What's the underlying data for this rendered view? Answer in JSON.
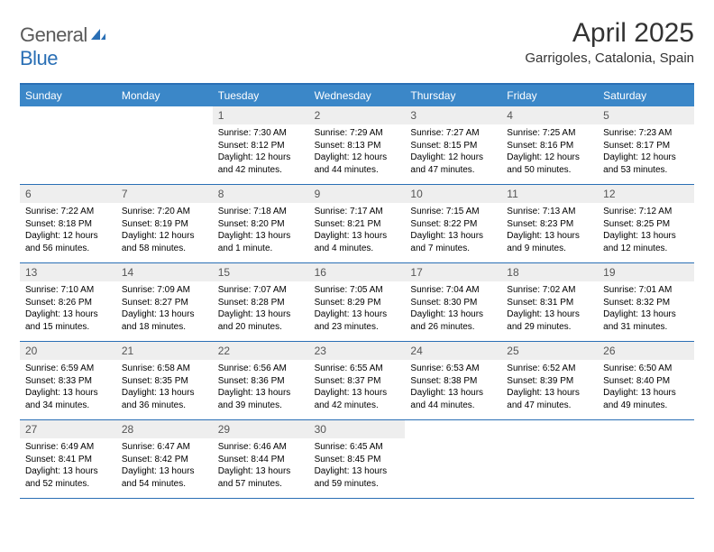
{
  "logo": {
    "general": "General",
    "blue": "Blue"
  },
  "title": "April 2025",
  "location": "Garrigoles, Catalonia, Spain",
  "colors": {
    "header_bg": "#3b87c8",
    "border": "#2a6fb5",
    "daynum_bg": "#eeeeee",
    "text": "#000000",
    "logo_gray": "#5a5a5a",
    "logo_blue": "#2a6fb5"
  },
  "weekdays": [
    "Sunday",
    "Monday",
    "Tuesday",
    "Wednesday",
    "Thursday",
    "Friday",
    "Saturday"
  ],
  "weeks": [
    [
      null,
      null,
      {
        "n": "1",
        "sr": "7:30 AM",
        "ss": "8:12 PM",
        "dl": "12 hours and 42 minutes."
      },
      {
        "n": "2",
        "sr": "7:29 AM",
        "ss": "8:13 PM",
        "dl": "12 hours and 44 minutes."
      },
      {
        "n": "3",
        "sr": "7:27 AM",
        "ss": "8:15 PM",
        "dl": "12 hours and 47 minutes."
      },
      {
        "n": "4",
        "sr": "7:25 AM",
        "ss": "8:16 PM",
        "dl": "12 hours and 50 minutes."
      },
      {
        "n": "5",
        "sr": "7:23 AM",
        "ss": "8:17 PM",
        "dl": "12 hours and 53 minutes."
      }
    ],
    [
      {
        "n": "6",
        "sr": "7:22 AM",
        "ss": "8:18 PM",
        "dl": "12 hours and 56 minutes."
      },
      {
        "n": "7",
        "sr": "7:20 AM",
        "ss": "8:19 PM",
        "dl": "12 hours and 58 minutes."
      },
      {
        "n": "8",
        "sr": "7:18 AM",
        "ss": "8:20 PM",
        "dl": "13 hours and 1 minute."
      },
      {
        "n": "9",
        "sr": "7:17 AM",
        "ss": "8:21 PM",
        "dl": "13 hours and 4 minutes."
      },
      {
        "n": "10",
        "sr": "7:15 AM",
        "ss": "8:22 PM",
        "dl": "13 hours and 7 minutes."
      },
      {
        "n": "11",
        "sr": "7:13 AM",
        "ss": "8:23 PM",
        "dl": "13 hours and 9 minutes."
      },
      {
        "n": "12",
        "sr": "7:12 AM",
        "ss": "8:25 PM",
        "dl": "13 hours and 12 minutes."
      }
    ],
    [
      {
        "n": "13",
        "sr": "7:10 AM",
        "ss": "8:26 PM",
        "dl": "13 hours and 15 minutes."
      },
      {
        "n": "14",
        "sr": "7:09 AM",
        "ss": "8:27 PM",
        "dl": "13 hours and 18 minutes."
      },
      {
        "n": "15",
        "sr": "7:07 AM",
        "ss": "8:28 PM",
        "dl": "13 hours and 20 minutes."
      },
      {
        "n": "16",
        "sr": "7:05 AM",
        "ss": "8:29 PM",
        "dl": "13 hours and 23 minutes."
      },
      {
        "n": "17",
        "sr": "7:04 AM",
        "ss": "8:30 PM",
        "dl": "13 hours and 26 minutes."
      },
      {
        "n": "18",
        "sr": "7:02 AM",
        "ss": "8:31 PM",
        "dl": "13 hours and 29 minutes."
      },
      {
        "n": "19",
        "sr": "7:01 AM",
        "ss": "8:32 PM",
        "dl": "13 hours and 31 minutes."
      }
    ],
    [
      {
        "n": "20",
        "sr": "6:59 AM",
        "ss": "8:33 PM",
        "dl": "13 hours and 34 minutes."
      },
      {
        "n": "21",
        "sr": "6:58 AM",
        "ss": "8:35 PM",
        "dl": "13 hours and 36 minutes."
      },
      {
        "n": "22",
        "sr": "6:56 AM",
        "ss": "8:36 PM",
        "dl": "13 hours and 39 minutes."
      },
      {
        "n": "23",
        "sr": "6:55 AM",
        "ss": "8:37 PM",
        "dl": "13 hours and 42 minutes."
      },
      {
        "n": "24",
        "sr": "6:53 AM",
        "ss": "8:38 PM",
        "dl": "13 hours and 44 minutes."
      },
      {
        "n": "25",
        "sr": "6:52 AM",
        "ss": "8:39 PM",
        "dl": "13 hours and 47 minutes."
      },
      {
        "n": "26",
        "sr": "6:50 AM",
        "ss": "8:40 PM",
        "dl": "13 hours and 49 minutes."
      }
    ],
    [
      {
        "n": "27",
        "sr": "6:49 AM",
        "ss": "8:41 PM",
        "dl": "13 hours and 52 minutes."
      },
      {
        "n": "28",
        "sr": "6:47 AM",
        "ss": "8:42 PM",
        "dl": "13 hours and 54 minutes."
      },
      {
        "n": "29",
        "sr": "6:46 AM",
        "ss": "8:44 PM",
        "dl": "13 hours and 57 minutes."
      },
      {
        "n": "30",
        "sr": "6:45 AM",
        "ss": "8:45 PM",
        "dl": "13 hours and 59 minutes."
      },
      null,
      null,
      null
    ]
  ],
  "labels": {
    "sunrise": "Sunrise:",
    "sunset": "Sunset:",
    "daylight": "Daylight:"
  }
}
